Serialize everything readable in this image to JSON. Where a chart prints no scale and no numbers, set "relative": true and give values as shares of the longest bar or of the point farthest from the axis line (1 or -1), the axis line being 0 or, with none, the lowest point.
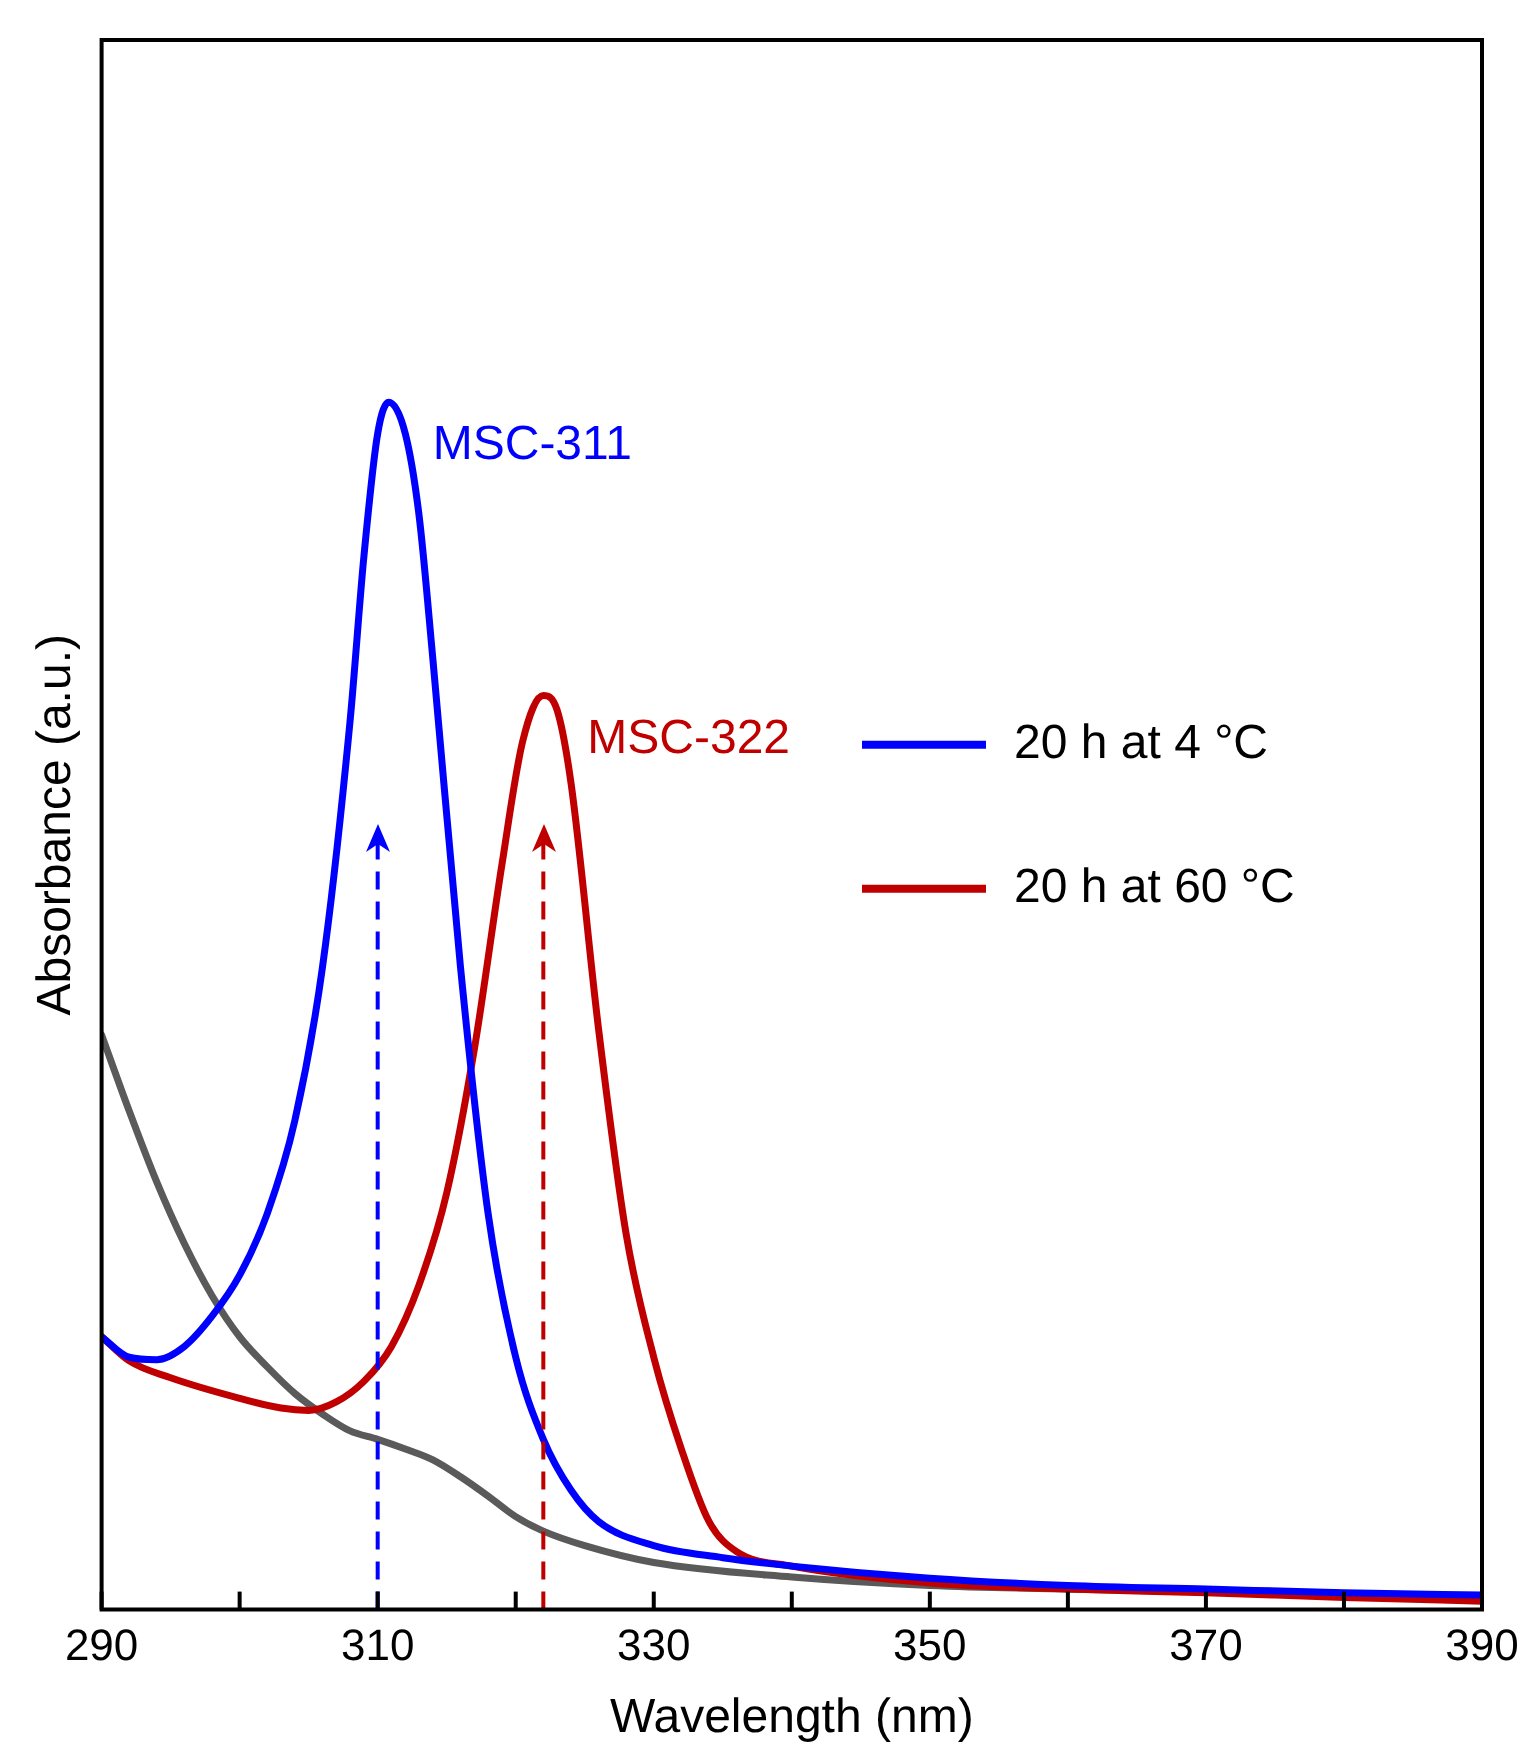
{
  "chart_data": {
    "type": "line",
    "relative": true,
    "xlabel": "Wavelength (nm)",
    "ylabel": "Absorbance (a.u.)",
    "xlim": [
      290,
      390
    ],
    "xticks": [
      290,
      {
        "value": 300,
        "label": null
      },
      310,
      {
        "value": 320,
        "label": null
      },
      330,
      {
        "value": 340,
        "label": null
      },
      350,
      {
        "value": 360,
        "label": null
      },
      370,
      {
        "value": 380,
        "label": null
      },
      390
    ],
    "tick_labels": "x",
    "grid": false,
    "legend": "right",
    "marker": "none",
    "line_style": "solid",
    "series": [
      {
        "name": "20 h at 4 °C",
        "color": "#0000ff",
        "x": [
          290,
          292,
          294,
          296,
          298,
          300,
          302,
          304,
          306,
          308,
          309,
          310,
          310.8,
          312,
          313,
          314,
          316,
          318,
          320,
          322,
          324,
          326,
          330,
          335,
          340,
          350,
          360,
          370,
          380,
          390
        ],
        "values": [
          0.226,
          0.209,
          0.207,
          0.218,
          0.243,
          0.277,
          0.328,
          0.405,
          0.532,
          0.736,
          0.872,
          0.974,
          1,
          0.974,
          0.906,
          0.787,
          0.532,
          0.328,
          0.209,
          0.141,
          0.099,
          0.073,
          0.053,
          0.043,
          0.036,
          0.026,
          0.02,
          0.017,
          0.014,
          0.012
        ]
      },
      {
        "name": "20 h at 60 °C",
        "color": "#c00000",
        "x": [
          290,
          292,
          295,
          300,
          303,
          305,
          307,
          309,
          311,
          313,
          315,
          317,
          319,
          320.5,
          322,
          323,
          324,
          326,
          328,
          330,
          332,
          334,
          336,
          340,
          350,
          360,
          370,
          380,
          390
        ],
        "values": [
          0.226,
          0.206,
          0.192,
          0.175,
          0.167,
          0.165,
          0.172,
          0.189,
          0.218,
          0.269,
          0.345,
          0.464,
          0.617,
          0.719,
          0.757,
          0.745,
          0.685,
          0.481,
          0.311,
          0.209,
          0.133,
          0.073,
          0.048,
          0.036,
          0.022,
          0.017,
          0.014,
          0.01,
          0.007
        ]
      },
      {
        "color": "#5a5a5a",
        "x": [
          290,
          292,
          294,
          296,
          298,
          300,
          302,
          304,
          306,
          308,
          310,
          312,
          314,
          316,
          318,
          320,
          322,
          325,
          330,
          340,
          350,
          370,
          390
        ],
        "values": [
          0.476,
          0.413,
          0.354,
          0.303,
          0.26,
          0.226,
          0.201,
          0.179,
          0.162,
          0.148,
          0.141,
          0.133,
          0.124,
          0.11,
          0.094,
          0.077,
          0.065,
          0.053,
          0.039,
          0.027,
          0.02,
          0.015,
          0.01
        ]
      }
    ],
    "annotations": [
      {
        "text": "MSC-311",
        "x": 310.8,
        "y": 1
      },
      {
        "text": "MSC-322",
        "x": 322,
        "y": 0.757
      }
    ],
    "ref_lines": [
      {
        "axis": "x",
        "value": 310,
        "color": "#0000ff",
        "line_style": "dashed"
      },
      {
        "axis": "x",
        "value": 322,
        "color": "#c00000",
        "line_style": "dashed"
      }
    ]
  }
}
